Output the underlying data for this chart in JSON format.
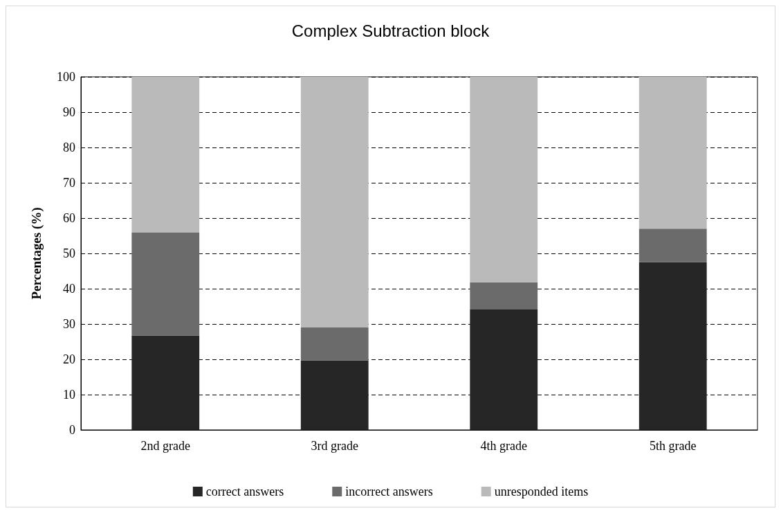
{
  "chart_data": {
    "type": "bar",
    "title": "Complex Subtraction block",
    "ylabel": "Percentages (%)",
    "categories": [
      "2nd grade",
      "3rd grade",
      "4th grade",
      "5th grade"
    ],
    "stacked": true,
    "series": [
      {
        "name": "correct answers",
        "color": "#262626",
        "values": [
          26.7,
          19.7,
          34.1,
          47.5
        ]
      },
      {
        "name": "incorrect answers",
        "color": "#6b6b6b",
        "values": [
          29.2,
          9.3,
          7.7,
          9.5
        ]
      },
      {
        "name": "unresponded items",
        "color": "#bababa",
        "values": [
          44.1,
          71,
          58.2,
          43
        ]
      }
    ],
    "ylim": [
      0,
      100
    ],
    "yticks": [
      0,
      10,
      20,
      30,
      40,
      50,
      60,
      70,
      80,
      90,
      100
    ],
    "grid": "y",
    "legend": "bottom"
  }
}
